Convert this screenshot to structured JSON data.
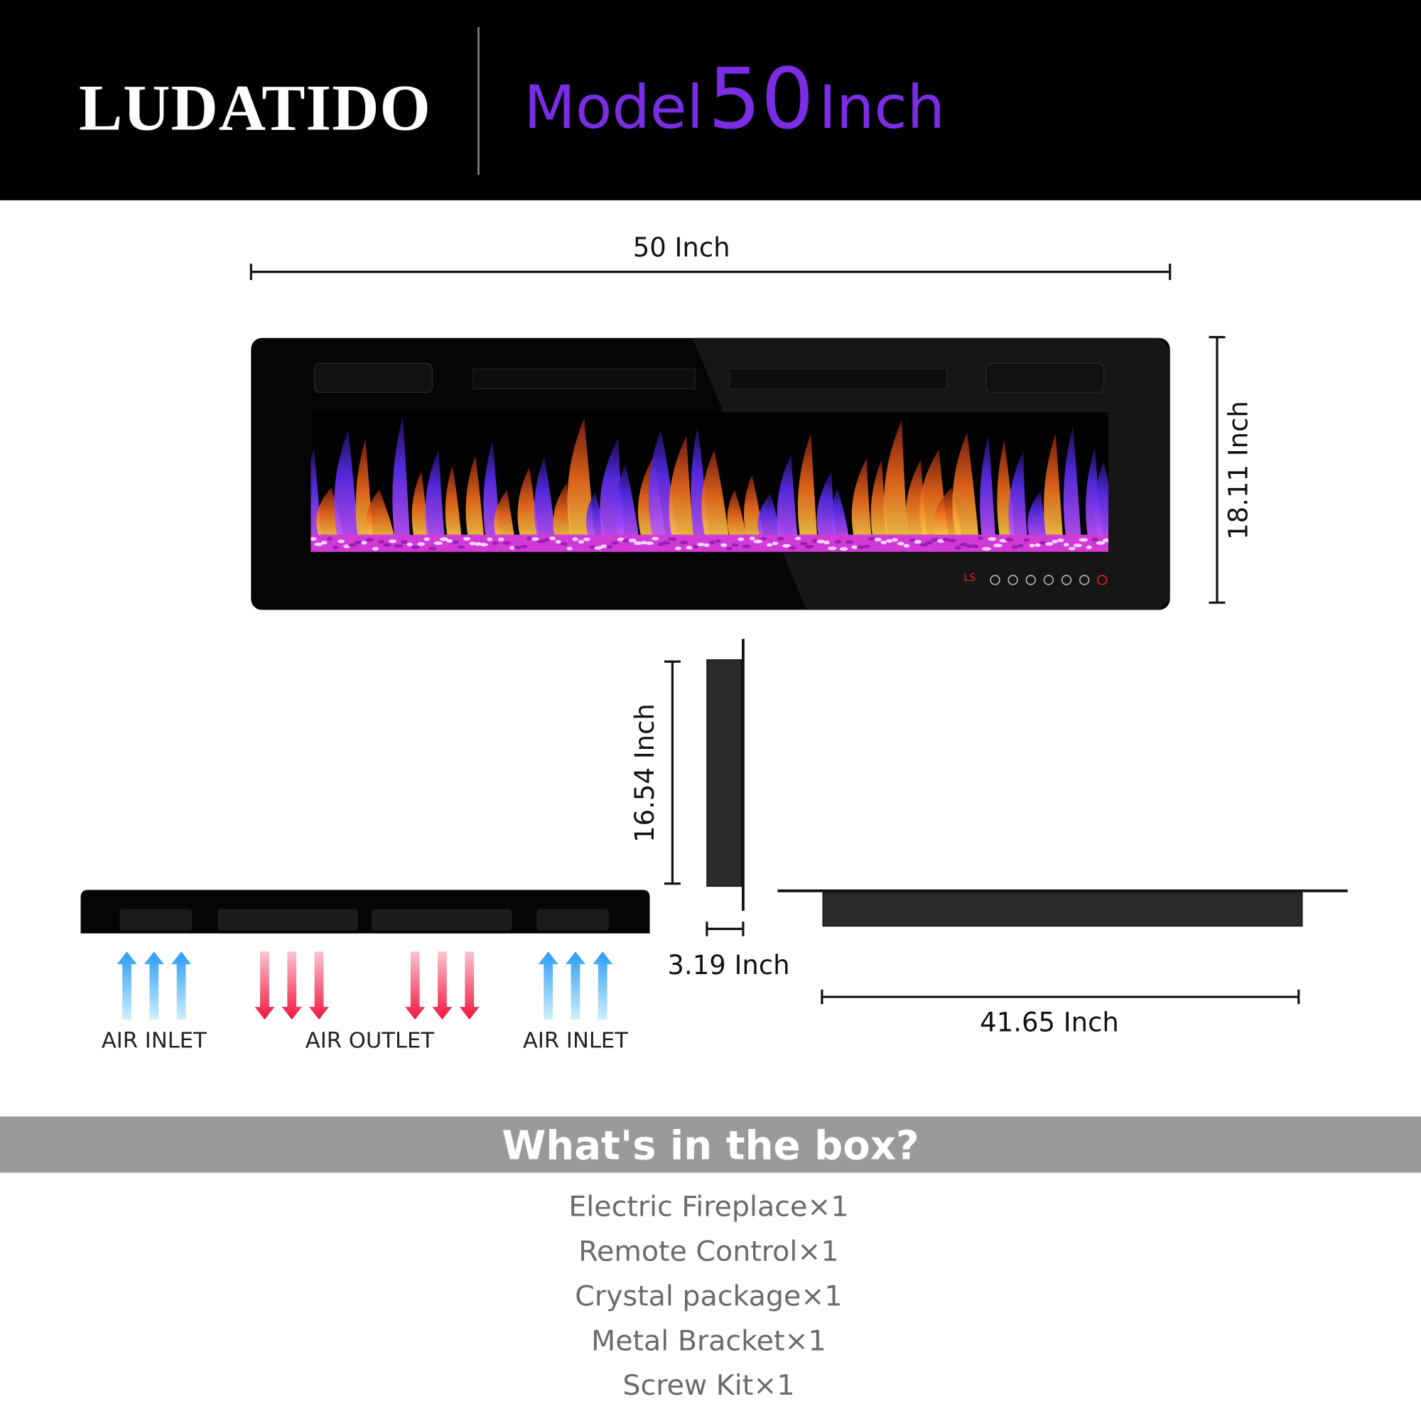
{
  "header": {
    "brand": "LUDATIDO",
    "model_label": "Model",
    "model_size": "50",
    "model_unit": "Inch"
  },
  "dimensions": {
    "width": "50 Inch",
    "height": "18.11 Inch",
    "inner_height": "16.54 Inch",
    "depth": "3.19 Inch",
    "inner_width": "41.65 Inch"
  },
  "control_display": "LS",
  "airflow": {
    "labels": [
      "AIR INLET",
      "AIR OUTLET",
      "AIR INLET"
    ]
  },
  "box": {
    "title": "What's in the box?",
    "items": [
      "Electric Fireplace×1",
      "Remote Control×1",
      "Crystal package×1",
      "Metal Bracket×1",
      "Screw Kit×1"
    ]
  }
}
